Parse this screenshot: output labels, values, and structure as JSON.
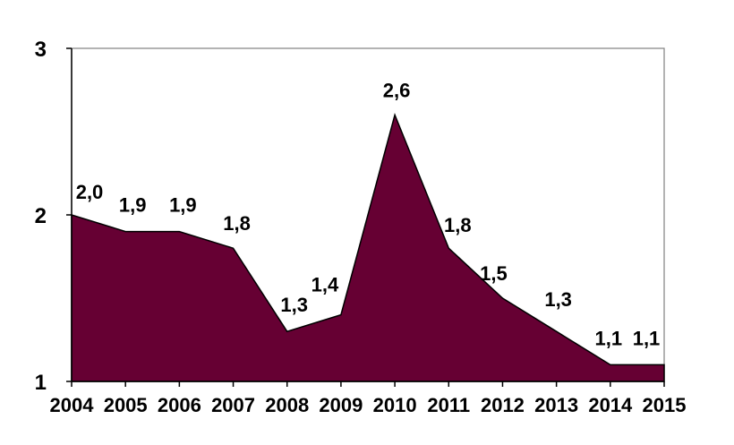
{
  "chart_data": {
    "type": "area",
    "title": "",
    "xlabel": "",
    "ylabel": "",
    "x": [
      "2004",
      "2005",
      "2006",
      "2007",
      "2008",
      "2009",
      "2010",
      "2011",
      "2012",
      "2013",
      "2014",
      "2015"
    ],
    "series": [
      {
        "values": [
          2.0,
          1.9,
          1.9,
          1.8,
          1.3,
          1.4,
          2.6,
          1.8,
          1.5,
          1.3,
          1.1,
          1.1
        ],
        "labels": [
          "2,0",
          "1,9",
          "1,9",
          "1,8",
          "1,3",
          "1,4",
          "2,6",
          "1,8",
          "1,5",
          "1,3",
          "1,1",
          "1,1"
        ],
        "color": "#660033"
      }
    ],
    "ylim": [
      1,
      3
    ],
    "yticks": [
      "1",
      "2",
      "3"
    ],
    "grid": false,
    "legend": "none"
  }
}
